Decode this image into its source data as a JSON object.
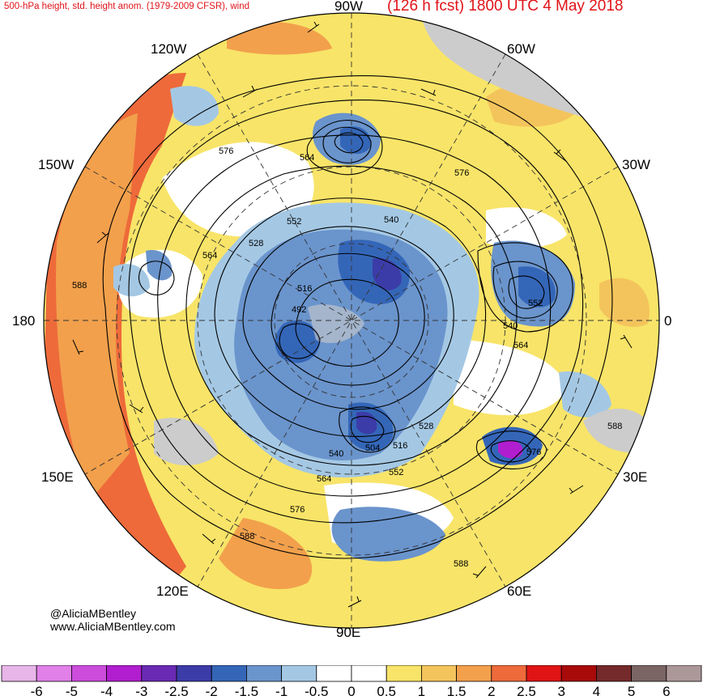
{
  "header": {
    "left_title": "500-hPa height, std. height anom. (1979-2009 CFSR), wind",
    "right_title": "(126 h fcst) 1800 UTC 4 May 2018"
  },
  "longitude_labels": {
    "lon_90w": "90W",
    "lon_120w": "120W",
    "lon_60w": "60W",
    "lon_150w": "150W",
    "lon_30w": "30W",
    "lon_180": "180",
    "lon_0": "0",
    "lon_150e": "150E",
    "lon_30e": "30E",
    "lon_120e": "120E",
    "lon_60e": "60E",
    "lon_90e": "90E"
  },
  "contour_labels": [
    {
      "text": "576"
    },
    {
      "text": "564"
    },
    {
      "text": "576"
    },
    {
      "text": "552"
    },
    {
      "text": "540"
    },
    {
      "text": "528"
    },
    {
      "text": "564"
    },
    {
      "text": "516"
    },
    {
      "text": "492"
    },
    {
      "text": "552"
    },
    {
      "text": "540"
    },
    {
      "text": "564"
    },
    {
      "text": "588"
    },
    {
      "text": "528"
    },
    {
      "text": "504"
    },
    {
      "text": "516"
    },
    {
      "text": "540"
    },
    {
      "text": "552"
    },
    {
      "text": "564"
    },
    {
      "text": "576"
    },
    {
      "text": "588"
    },
    {
      "text": "588"
    },
    {
      "text": "576"
    },
    {
      "text": "588"
    }
  ],
  "credits": {
    "handle": "@AliciaMBentley",
    "website": "www.AliciaMBentley.com"
  },
  "colorbar": {
    "colors": [
      "#e8b6e8",
      "#e080e8",
      "#cc4cdc",
      "#b01ed0",
      "#6a2ab4",
      "#3c3ca8",
      "#3466b8",
      "#6a94cc",
      "#a4c8e4",
      "#ffffff",
      "#ffffff",
      "#f8e468",
      "#f4c45c",
      "#f2a04c",
      "#ee6a3a",
      "#e01414",
      "#a80a0a",
      "#742a2a",
      "#7a6464",
      "#ac9898"
    ],
    "tick_labels": [
      "-6",
      "-5",
      "-4",
      "-3",
      "-2.5",
      "-2",
      "-1.5",
      "-1",
      "-0.5",
      "0",
      "0.5",
      "1",
      "1.5",
      "2",
      "2.5",
      "3",
      "4",
      "5",
      "6"
    ]
  }
}
